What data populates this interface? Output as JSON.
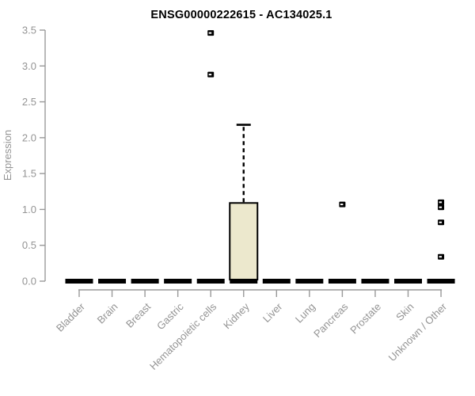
{
  "chart_data": {
    "type": "boxplot",
    "title": "ENSG00000222615 - AC134025.1",
    "ylabel": "Expression",
    "xlabel": "",
    "ylim": [
      0,
      3.5
    ],
    "yticks": [
      "0.0",
      "0.5",
      "1.0",
      "1.5",
      "2.0",
      "2.5",
      "3.0",
      "3.5"
    ],
    "grid": false,
    "legend": "none",
    "x_label_rotation_deg": 45,
    "categories": [
      "Bladder",
      "Brain",
      "Breast",
      "Gastric",
      "Hematopoietic cells",
      "Kidney",
      "Liver",
      "Lung",
      "Pancreas",
      "Prostate",
      "Skin",
      "Unknown / Other"
    ],
    "groups": [
      {
        "category": "Bladder",
        "median": 0,
        "q1": 0,
        "q3": 0,
        "whisker_low": 0,
        "whisker_high": 0,
        "outliers": []
      },
      {
        "category": "Brain",
        "median": 0,
        "q1": 0,
        "q3": 0,
        "whisker_low": 0,
        "whisker_high": 0,
        "outliers": []
      },
      {
        "category": "Breast",
        "median": 0,
        "q1": 0,
        "q3": 0,
        "whisker_low": 0,
        "whisker_high": 0,
        "outliers": []
      },
      {
        "category": "Gastric",
        "median": 0,
        "q1": 0,
        "q3": 0,
        "whisker_low": 0,
        "whisker_high": 0,
        "outliers": []
      },
      {
        "category": "Hematopoietic cells",
        "median": 0,
        "q1": 0,
        "q3": 0,
        "whisker_low": 0,
        "whisker_high": 0,
        "outliers": [
          3.46,
          2.88
        ]
      },
      {
        "category": "Kidney",
        "median": 0,
        "q1": 0,
        "q3": 1.09,
        "whisker_low": 0,
        "whisker_high": 2.18,
        "outliers": []
      },
      {
        "category": "Liver",
        "median": 0,
        "q1": 0,
        "q3": 0,
        "whisker_low": 0,
        "whisker_high": 0,
        "outliers": []
      },
      {
        "category": "Lung",
        "median": 0,
        "q1": 0,
        "q3": 0,
        "whisker_low": 0,
        "whisker_high": 0,
        "outliers": []
      },
      {
        "category": "Pancreas",
        "median": 0,
        "q1": 0,
        "q3": 0,
        "whisker_low": 0,
        "whisker_high": 0,
        "outliers": [
          1.07
        ]
      },
      {
        "category": "Prostate",
        "median": 0,
        "q1": 0,
        "q3": 0,
        "whisker_low": 0,
        "whisker_high": 0,
        "outliers": []
      },
      {
        "category": "Skin",
        "median": 0,
        "q1": 0,
        "q3": 0,
        "whisker_low": 0,
        "whisker_high": 0,
        "outliers": []
      },
      {
        "category": "Unknown / Other",
        "median": 0,
        "q1": 0,
        "q3": 0,
        "whisker_low": 0,
        "whisker_high": 0,
        "outliers": [
          1.1,
          1.03,
          0.82,
          0.34
        ]
      }
    ],
    "colors": {
      "box_fill": "#ece8cd",
      "box_line": "#000000",
      "median": "#000000",
      "outlier": "#000000",
      "axis": "#999999",
      "tick_label": "#949494",
      "title": "#000000"
    }
  }
}
